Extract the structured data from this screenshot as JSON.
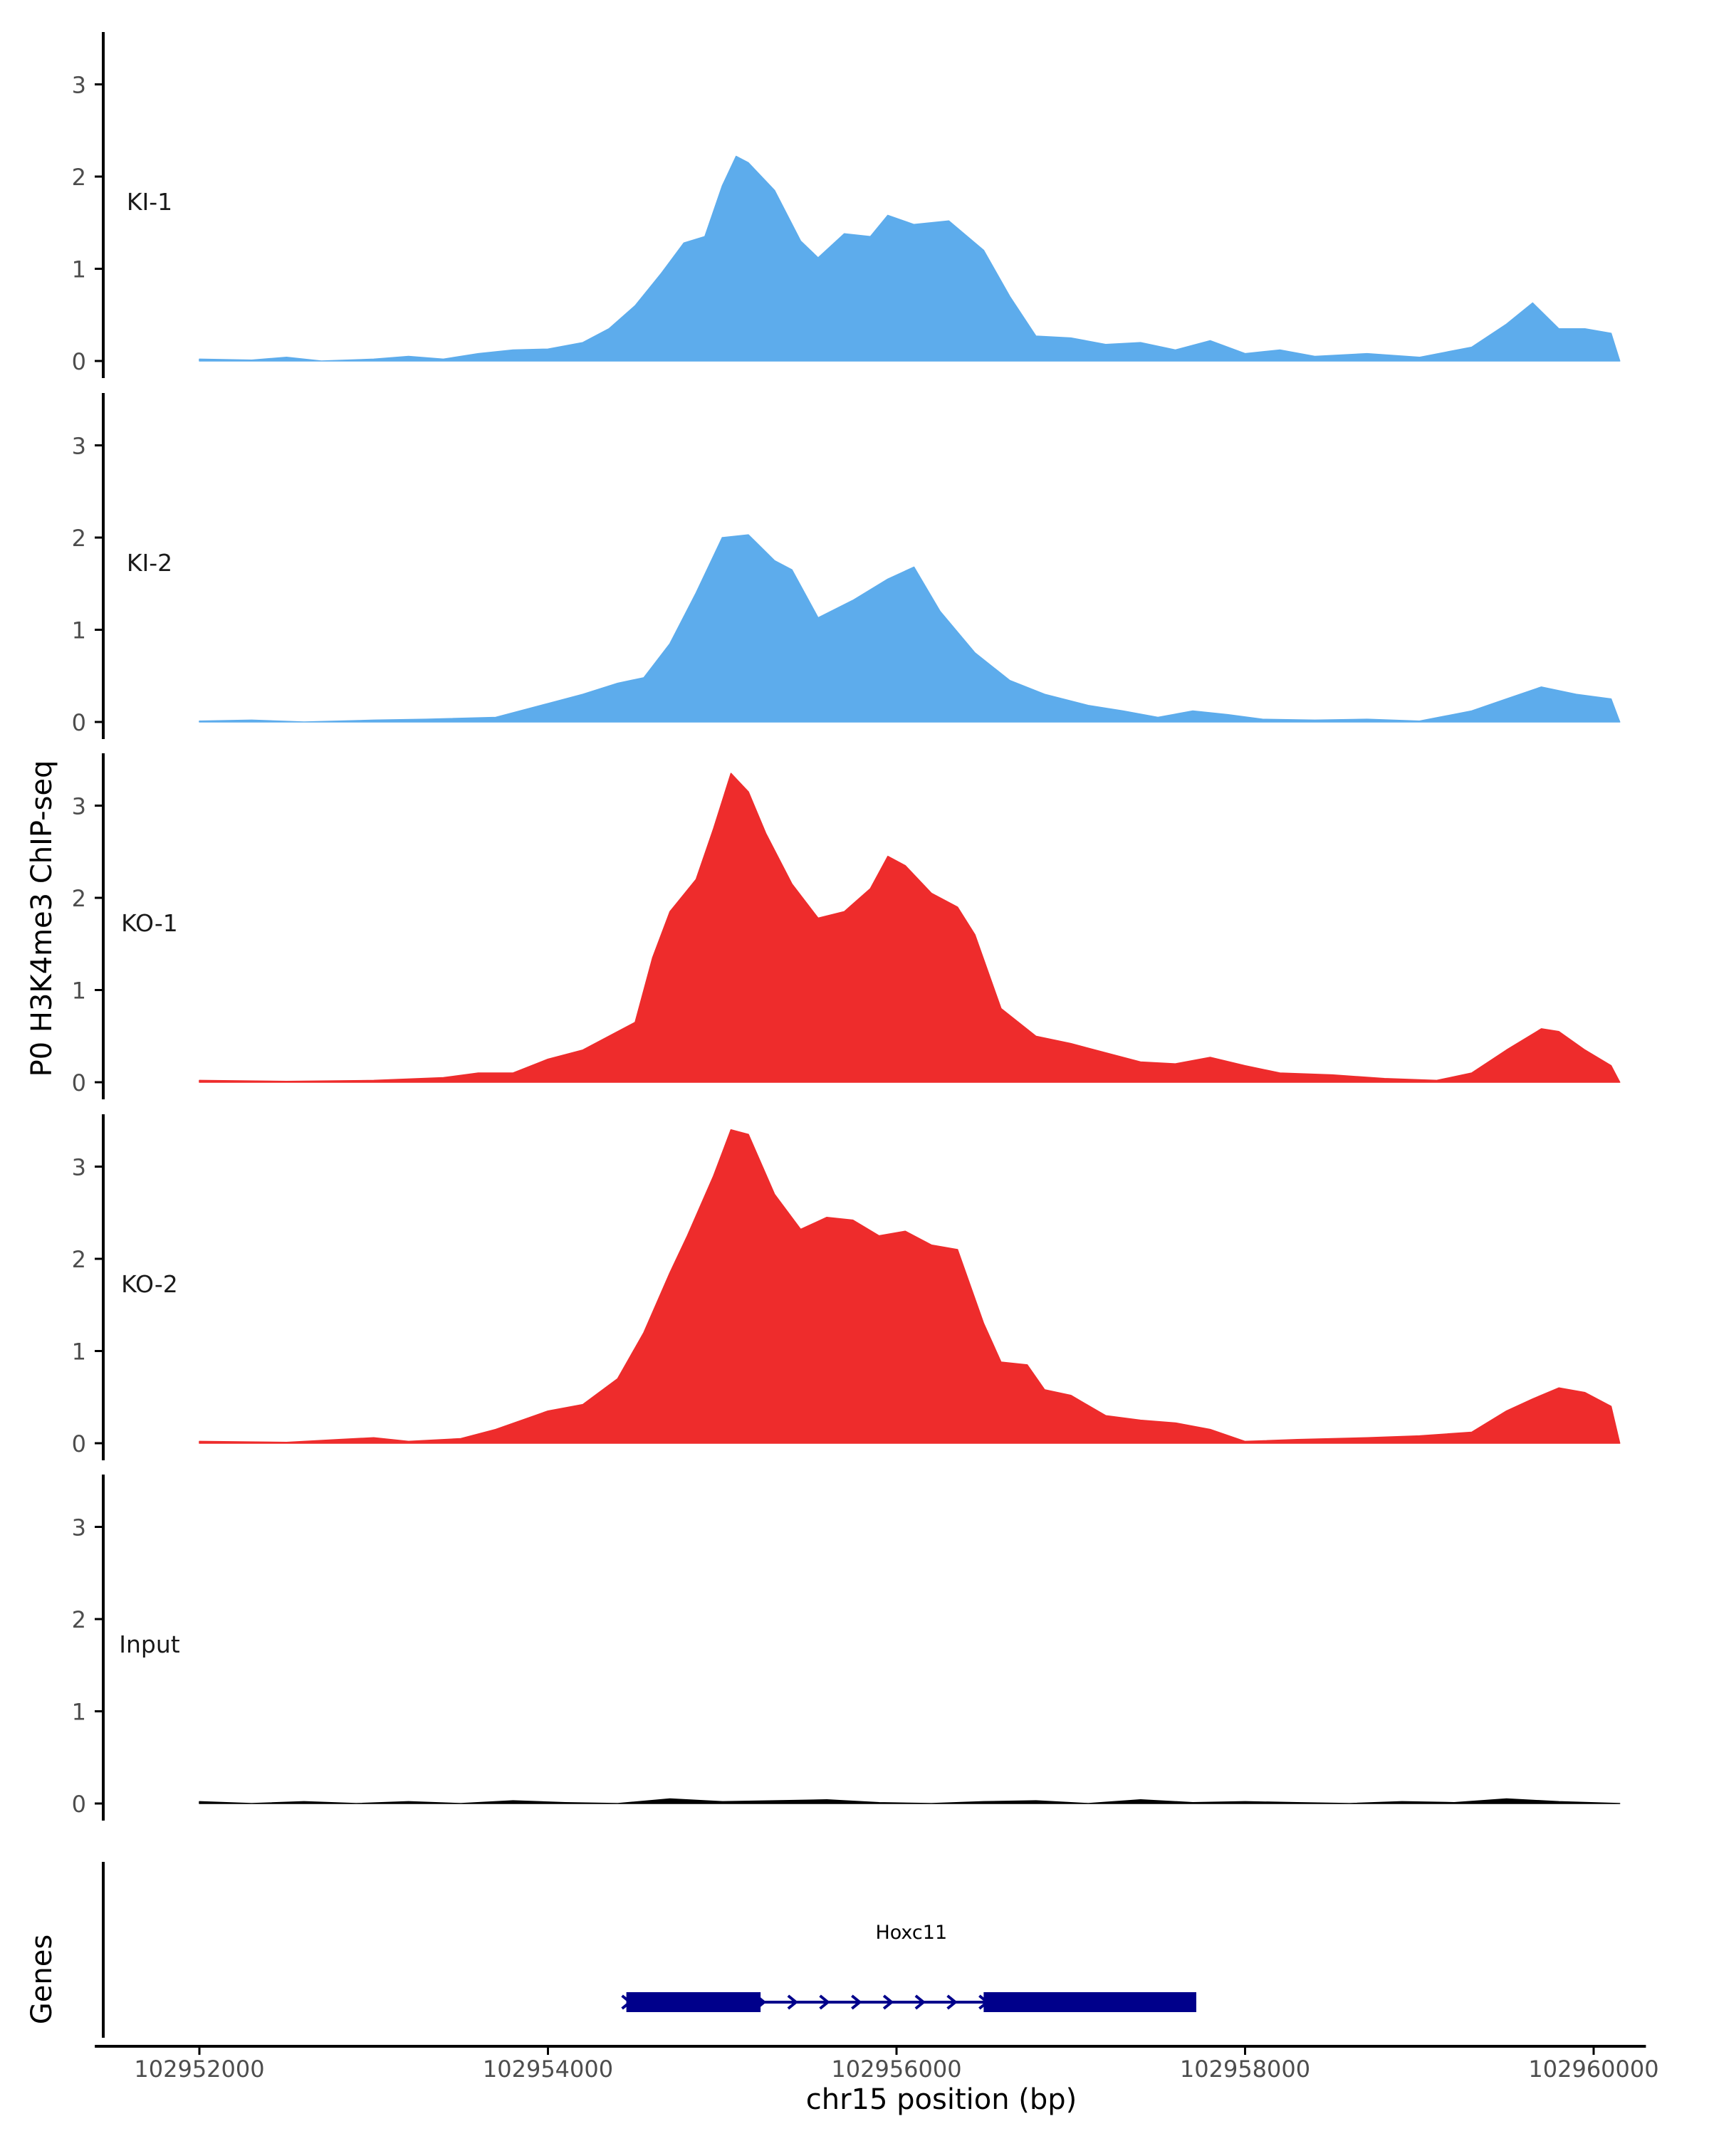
{
  "chart_data": {
    "type": "area",
    "ylabel": "P0 H3K4me3 ChIP-seq",
    "xlabel": "chr15 position (bp)",
    "genes_label": "Genes",
    "xlim": [
      102951400,
      102960300
    ],
    "ylim": [
      0,
      3.5
    ],
    "x_ticks": [
      102952000,
      102954000,
      102956000,
      102958000,
      102960000
    ],
    "x_tick_labels": [
      "102952000",
      "102954000",
      "102956000",
      "102958000",
      "102960000"
    ],
    "y_ticks": [
      0,
      1,
      2,
      3
    ],
    "y_tick_labels": [
      "0",
      "1",
      "2",
      "3"
    ],
    "series": [
      {
        "name": "KI-1",
        "color": "#5DACEC",
        "points": [
          [
            102952000,
            0.02
          ],
          [
            102952300,
            0.01
          ],
          [
            102952500,
            0.04
          ],
          [
            102952700,
            0.0
          ],
          [
            102953000,
            0.02
          ],
          [
            102953200,
            0.05
          ],
          [
            102953400,
            0.02
          ],
          [
            102953600,
            0.08
          ],
          [
            102953800,
            0.12
          ],
          [
            102954000,
            0.13
          ],
          [
            102954200,
            0.2
          ],
          [
            102954350,
            0.35
          ],
          [
            102954500,
            0.6
          ],
          [
            102954650,
            0.95
          ],
          [
            102954780,
            1.28
          ],
          [
            102954900,
            1.35
          ],
          [
            102955000,
            1.9
          ],
          [
            102955080,
            2.22
          ],
          [
            102955150,
            2.15
          ],
          [
            102955300,
            1.85
          ],
          [
            102955450,
            1.3
          ],
          [
            102955550,
            1.12
          ],
          [
            102955700,
            1.38
          ],
          [
            102955850,
            1.35
          ],
          [
            102955950,
            1.58
          ],
          [
            102956100,
            1.48
          ],
          [
            102956300,
            1.52
          ],
          [
            102956500,
            1.2
          ],
          [
            102956650,
            0.7
          ],
          [
            102956800,
            0.27
          ],
          [
            102957000,
            0.25
          ],
          [
            102957200,
            0.18
          ],
          [
            102957400,
            0.2
          ],
          [
            102957600,
            0.12
          ],
          [
            102957800,
            0.22
          ],
          [
            102958000,
            0.08
          ],
          [
            102958200,
            0.12
          ],
          [
            102958400,
            0.05
          ],
          [
            102958700,
            0.08
          ],
          [
            102959000,
            0.04
          ],
          [
            102959300,
            0.15
          ],
          [
            102959500,
            0.4
          ],
          [
            102959650,
            0.63
          ],
          [
            102959800,
            0.35
          ],
          [
            102959950,
            0.35
          ],
          [
            102960100,
            0.3
          ],
          [
            102960150,
            0.0
          ]
        ]
      },
      {
        "name": "KI-2",
        "color": "#5DACEC",
        "points": [
          [
            102952000,
            0.01
          ],
          [
            102952300,
            0.02
          ],
          [
            102952600,
            0.0
          ],
          [
            102953000,
            0.02
          ],
          [
            102953300,
            0.03
          ],
          [
            102953700,
            0.05
          ],
          [
            102954000,
            0.2
          ],
          [
            102954200,
            0.3
          ],
          [
            102954400,
            0.42
          ],
          [
            102954550,
            0.48
          ],
          [
            102954700,
            0.85
          ],
          [
            102954850,
            1.4
          ],
          [
            102955000,
            2.0
          ],
          [
            102955150,
            2.03
          ],
          [
            102955300,
            1.75
          ],
          [
            102955400,
            1.65
          ],
          [
            102955550,
            1.13
          ],
          [
            102955750,
            1.32
          ],
          [
            102955950,
            1.55
          ],
          [
            102956100,
            1.68
          ],
          [
            102956250,
            1.2
          ],
          [
            102956450,
            0.75
          ],
          [
            102956650,
            0.45
          ],
          [
            102956850,
            0.3
          ],
          [
            102957100,
            0.18
          ],
          [
            102957300,
            0.12
          ],
          [
            102957500,
            0.05
          ],
          [
            102957700,
            0.12
          ],
          [
            102957900,
            0.08
          ],
          [
            102958100,
            0.03
          ],
          [
            102958400,
            0.02
          ],
          [
            102958700,
            0.03
          ],
          [
            102959000,
            0.01
          ],
          [
            102959300,
            0.12
          ],
          [
            102959500,
            0.25
          ],
          [
            102959700,
            0.38
          ],
          [
            102959900,
            0.3
          ],
          [
            102960100,
            0.25
          ],
          [
            102960150,
            0.0
          ]
        ]
      },
      {
        "name": "KO-1",
        "color": "#EE2C2C",
        "points": [
          [
            102952000,
            0.02
          ],
          [
            102952500,
            0.01
          ],
          [
            102953000,
            0.02
          ],
          [
            102953400,
            0.05
          ],
          [
            102953600,
            0.1
          ],
          [
            102953800,
            0.1
          ],
          [
            102954000,
            0.25
          ],
          [
            102954200,
            0.35
          ],
          [
            102954400,
            0.55
          ],
          [
            102954500,
            0.65
          ],
          [
            102954600,
            1.35
          ],
          [
            102954700,
            1.85
          ],
          [
            102954850,
            2.2
          ],
          [
            102954950,
            2.75
          ],
          [
            102955050,
            3.35
          ],
          [
            102955150,
            3.15
          ],
          [
            102955250,
            2.7
          ],
          [
            102955400,
            2.15
          ],
          [
            102955550,
            1.78
          ],
          [
            102955700,
            1.85
          ],
          [
            102955850,
            2.1
          ],
          [
            102955950,
            2.45
          ],
          [
            102956050,
            2.35
          ],
          [
            102956200,
            2.05
          ],
          [
            102956350,
            1.9
          ],
          [
            102956450,
            1.6
          ],
          [
            102956600,
            0.8
          ],
          [
            102956800,
            0.5
          ],
          [
            102957000,
            0.42
          ],
          [
            102957200,
            0.32
          ],
          [
            102957400,
            0.22
          ],
          [
            102957600,
            0.2
          ],
          [
            102957800,
            0.27
          ],
          [
            102958000,
            0.18
          ],
          [
            102958200,
            0.1
          ],
          [
            102958500,
            0.08
          ],
          [
            102958800,
            0.04
          ],
          [
            102959100,
            0.02
          ],
          [
            102959300,
            0.1
          ],
          [
            102959500,
            0.35
          ],
          [
            102959700,
            0.58
          ],
          [
            102959800,
            0.55
          ],
          [
            102959950,
            0.35
          ],
          [
            102960100,
            0.18
          ],
          [
            102960150,
            0.0
          ]
        ]
      },
      {
        "name": "KO-2",
        "color": "#EE2C2C",
        "points": [
          [
            102952000,
            0.02
          ],
          [
            102952500,
            0.01
          ],
          [
            102952800,
            0.04
          ],
          [
            102953000,
            0.06
          ],
          [
            102953200,
            0.02
          ],
          [
            102953500,
            0.05
          ],
          [
            102953700,
            0.15
          ],
          [
            102954000,
            0.35
          ],
          [
            102954200,
            0.42
          ],
          [
            102954400,
            0.7
          ],
          [
            102954550,
            1.2
          ],
          [
            102954700,
            1.85
          ],
          [
            102954800,
            2.25
          ],
          [
            102954950,
            2.9
          ],
          [
            102955050,
            3.4
          ],
          [
            102955150,
            3.35
          ],
          [
            102955300,
            2.7
          ],
          [
            102955450,
            2.32
          ],
          [
            102955600,
            2.45
          ],
          [
            102955750,
            2.42
          ],
          [
            102955900,
            2.25
          ],
          [
            102956050,
            2.3
          ],
          [
            102956200,
            2.15
          ],
          [
            102956350,
            2.1
          ],
          [
            102956500,
            1.3
          ],
          [
            102956600,
            0.88
          ],
          [
            102956750,
            0.85
          ],
          [
            102956850,
            0.58
          ],
          [
            102957000,
            0.52
          ],
          [
            102957200,
            0.3
          ],
          [
            102957400,
            0.25
          ],
          [
            102957600,
            0.22
          ],
          [
            102957800,
            0.15
          ],
          [
            102958000,
            0.02
          ],
          [
            102958300,
            0.04
          ],
          [
            102958700,
            0.06
          ],
          [
            102959000,
            0.08
          ],
          [
            102959300,
            0.12
          ],
          [
            102959500,
            0.35
          ],
          [
            102959650,
            0.48
          ],
          [
            102959800,
            0.6
          ],
          [
            102959950,
            0.55
          ],
          [
            102960100,
            0.4
          ],
          [
            102960150,
            0.0
          ]
        ]
      },
      {
        "name": "Input",
        "color": "#000000",
        "points": [
          [
            102952000,
            0.02
          ],
          [
            102952300,
            0.0
          ],
          [
            102952600,
            0.02
          ],
          [
            102952900,
            0.0
          ],
          [
            102953200,
            0.02
          ],
          [
            102953500,
            0.0
          ],
          [
            102953800,
            0.03
          ],
          [
            102954100,
            0.01
          ],
          [
            102954400,
            0.0
          ],
          [
            102954700,
            0.05
          ],
          [
            102955000,
            0.02
          ],
          [
            102955300,
            0.03
          ],
          [
            102955600,
            0.04
          ],
          [
            102955900,
            0.01
          ],
          [
            102956200,
            0.0
          ],
          [
            102956500,
            0.02
          ],
          [
            102956800,
            0.03
          ],
          [
            102957100,
            0.0
          ],
          [
            102957400,
            0.04
          ],
          [
            102957700,
            0.01
          ],
          [
            102958000,
            0.02
          ],
          [
            102958300,
            0.01
          ],
          [
            102958600,
            0.0
          ],
          [
            102958900,
            0.02
          ],
          [
            102959200,
            0.01
          ],
          [
            102959500,
            0.05
          ],
          [
            102959800,
            0.02
          ],
          [
            102960150,
            0.0
          ]
        ]
      }
    ],
    "gene": {
      "name": "Hoxc11",
      "start": 102954450,
      "end": 102957720,
      "exons": [
        [
          102954450,
          102955220
        ],
        [
          102956500,
          102957720
        ]
      ],
      "strand": "+"
    }
  }
}
